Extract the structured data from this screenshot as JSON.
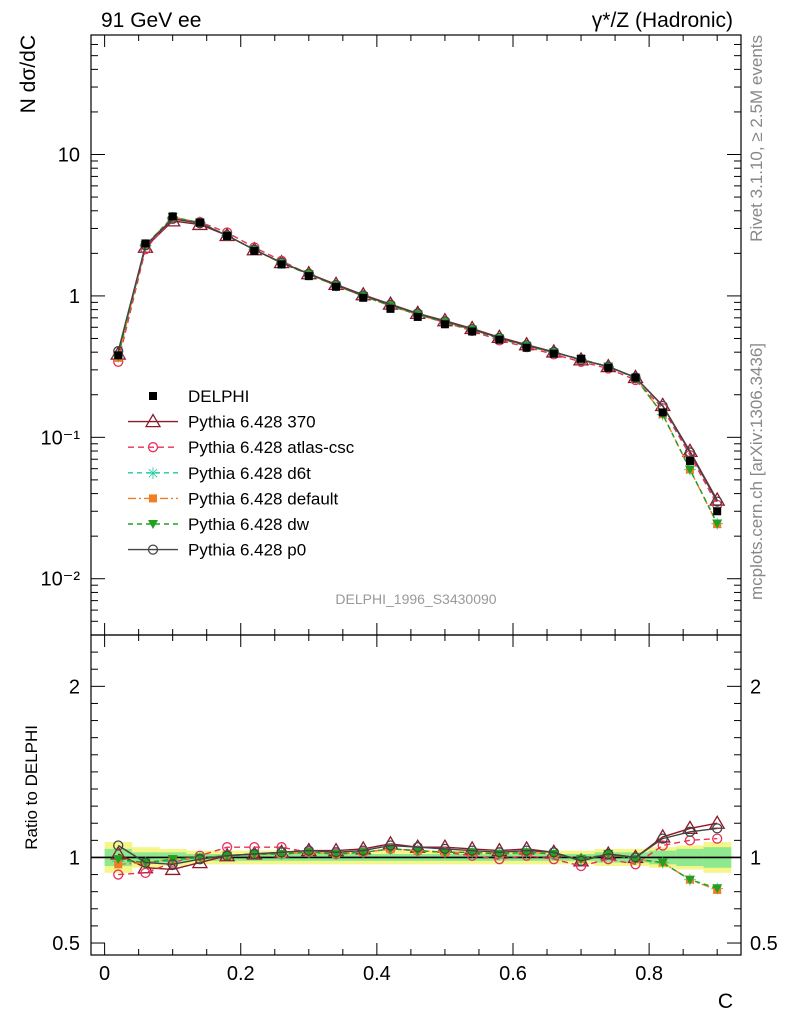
{
  "header": {
    "left": "91 GeV ee",
    "right": "γ*/Z (Hadronic)"
  },
  "side_text": {
    "rivet": "Rivet 3.1.10, ≥ 2.5M events",
    "mcplots": "mcplots.cern.ch [arXiv:1306.3436]"
  },
  "colors": {
    "data": "#000000",
    "p370": "#8b1a2b",
    "atlas_csc": "#e8305a",
    "d6t": "#1fc8a0",
    "default": "#f07f23",
    "dw": "#22a022",
    "p0": "#444444",
    "band_inner": "#8ee88e",
    "band_outer": "#f5f58a"
  },
  "chart_data": {
    "type": "line",
    "analysis_label": "DELPHI_1996_S3430090",
    "xlabel": "C",
    "ylabel": "N dσ/dC",
    "ratio_ylabel": "Ratio to DELPHI",
    "xlim": [
      -0.02,
      0.935
    ],
    "ylim": [
      0.004,
      70
    ],
    "ylog": true,
    "ratio_ylim": [
      0.43,
      2.3
    ],
    "x_ticks": [
      "0",
      "0.2",
      "0.4",
      "0.6",
      "0.8"
    ],
    "y_ticks": [
      "10",
      "1",
      "10⁻¹",
      "10⁻²"
    ],
    "ratio_ticks": [
      "2",
      "1",
      "0.5"
    ],
    "legend_position": "center-left",
    "x": [
      0.02,
      0.06,
      0.1,
      0.14,
      0.18,
      0.22,
      0.26,
      0.3,
      0.34,
      0.38,
      0.42,
      0.46,
      0.5,
      0.54,
      0.58,
      0.62,
      0.66,
      0.7,
      0.74,
      0.78,
      0.82,
      0.86,
      0.9
    ],
    "data": {
      "name": "DELPHI",
      "values": [
        0.38,
        2.35,
        3.65,
        3.3,
        2.65,
        2.08,
        1.67,
        1.38,
        1.16,
        0.97,
        0.81,
        0.71,
        0.63,
        0.56,
        0.49,
        0.43,
        0.39,
        0.36,
        0.31,
        0.265,
        0.15,
        0.068,
        0.03
      ]
    },
    "band_inner": [
      0.05,
      0.03,
      0.03,
      0.02,
      0.02,
      0.02,
      0.02,
      0.02,
      0.02,
      0.02,
      0.02,
      0.02,
      0.02,
      0.02,
      0.02,
      0.02,
      0.02,
      0.02,
      0.03,
      0.03,
      0.04,
      0.05,
      0.06
    ],
    "band_outer": [
      0.09,
      0.06,
      0.05,
      0.04,
      0.04,
      0.04,
      0.04,
      0.04,
      0.04,
      0.04,
      0.04,
      0.04,
      0.04,
      0.04,
      0.04,
      0.04,
      0.04,
      0.04,
      0.05,
      0.05,
      0.06,
      0.07,
      0.09
    ],
    "series": [
      {
        "name": "Pythia 6.428 370",
        "key": "p370",
        "ratio": [
          1.02,
          0.94,
          0.93,
          0.97,
          1.01,
          1.02,
          1.03,
          1.04,
          1.04,
          1.05,
          1.08,
          1.06,
          1.06,
          1.05,
          1.04,
          1.05,
          1.03,
          0.98,
          1.02,
          1.0,
          1.12,
          1.17,
          1.2
        ]
      },
      {
        "name": "Pythia 6.428 atlas-csc",
        "key": "atlas_csc",
        "ratio": [
          0.9,
          0.91,
          0.97,
          1.01,
          1.06,
          1.06,
          1.06,
          1.03,
          1.02,
          1.03,
          1.05,
          1.04,
          1.03,
          1.01,
          0.99,
          1.01,
          0.99,
          0.95,
          0.99,
          0.96,
          1.07,
          1.1,
          1.11
        ]
      },
      {
        "name": "Pythia 6.428 d6t",
        "key": "d6t",
        "ratio": [
          0.98,
          0.97,
          0.98,
          1.0,
          1.01,
          1.02,
          1.02,
          1.03,
          1.02,
          1.03,
          1.05,
          1.04,
          1.03,
          1.03,
          1.02,
          1.03,
          1.02,
          0.99,
          1.02,
          0.99,
          0.97,
          0.87,
          0.82
        ]
      },
      {
        "name": "Pythia 6.428 default",
        "key": "default",
        "ratio": [
          0.96,
          0.97,
          0.99,
          1.0,
          1.01,
          1.02,
          1.02,
          1.03,
          1.02,
          1.03,
          1.05,
          1.04,
          1.03,
          1.03,
          1.02,
          1.03,
          1.02,
          0.99,
          1.02,
          0.99,
          0.97,
          0.87,
          0.81
        ]
      },
      {
        "name": "Pythia 6.428 dw",
        "key": "dw",
        "ratio": [
          0.99,
          0.97,
          0.99,
          1.0,
          1.01,
          1.02,
          1.02,
          1.03,
          1.02,
          1.03,
          1.05,
          1.04,
          1.03,
          1.03,
          1.02,
          1.03,
          1.02,
          0.99,
          1.02,
          0.99,
          0.97,
          0.87,
          0.82
        ]
      },
      {
        "name": "Pythia 6.428 p0",
        "key": "p0",
        "ratio": [
          1.07,
          0.97,
          0.96,
          0.99,
          1.01,
          1.02,
          1.03,
          1.04,
          1.03,
          1.04,
          1.07,
          1.06,
          1.05,
          1.04,
          1.03,
          1.04,
          1.03,
          0.98,
          1.02,
          1.0,
          1.11,
          1.15,
          1.17
        ]
      }
    ]
  }
}
